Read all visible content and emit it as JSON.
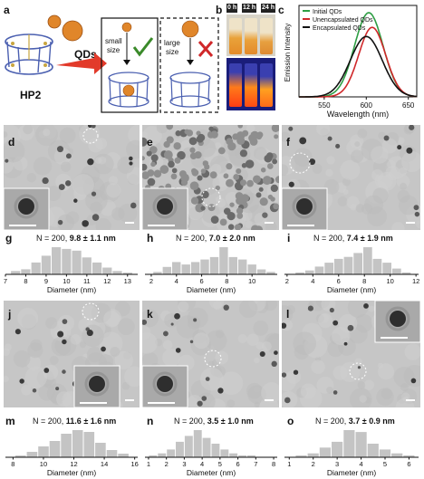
{
  "panel_labels": {
    "a": "a",
    "b": "b",
    "c": "c",
    "d": "d",
    "e": "e",
    "f": "f",
    "g": "g",
    "h": "h",
    "i": "i",
    "j": "j",
    "k": "k",
    "l": "l",
    "m": "m",
    "n": "n",
    "o": "o"
  },
  "schematic": {
    "host_label": "HP2",
    "qd_label": "QDs",
    "small_label_1": "small",
    "small_label_2": "size",
    "large_label_1": "large",
    "large_label_2": "size",
    "check_color": "#3a8a2a",
    "cross_color": "#d0282a",
    "arrow_color": "#e23a2a",
    "qd_color": "#e0862a"
  },
  "vials": {
    "times": [
      "0 h",
      "12 h",
      "24 h"
    ]
  },
  "emission_chart": {
    "type": "line",
    "xlabel": "Wavelength (nm)",
    "ylabel": "Emission Intensity",
    "xlim": [
      520,
      660
    ],
    "xticks": [
      "550",
      "600",
      "650"
    ],
    "series": [
      {
        "name": "Initial QDs",
        "color": "#2e9e44",
        "peak": 603,
        "height": 0.92,
        "width": 17
      },
      {
        "name": "Unencapsulated QDs",
        "color": "#d0282a",
        "peak": 607,
        "height": 0.76,
        "width": 16
      },
      {
        "name": "Encapsulated QDs",
        "color": "#111111",
        "peak": 600,
        "height": 0.66,
        "width": 19
      }
    ]
  },
  "chart_data": [
    {
      "type": "bar",
      "panel": "g",
      "title": "N = 200,",
      "stat": "9.8 ± 1.1 nm",
      "xlabel": "Diameter (nm)",
      "xlim": [
        7,
        13.5
      ],
      "xticks": [
        "7",
        "8",
        "9",
        "10",
        "11",
        "12",
        "13"
      ],
      "x": [
        7.5,
        8.0,
        8.5,
        9.0,
        9.5,
        10.0,
        10.5,
        11.0,
        11.5,
        12.0,
        12.5,
        13.0
      ],
      "values": [
        2,
        3,
        7,
        11,
        16,
        15,
        14,
        10,
        7,
        4,
        2,
        1
      ]
    },
    {
      "type": "bar",
      "panel": "h",
      "title": "N = 200,",
      "stat": "7.0 ± 2.0 nm",
      "xlabel": "Diameter (nm)",
      "xlim": [
        1.5,
        12
      ],
      "xticks": [
        "2",
        "4",
        "6",
        "8",
        "10"
      ],
      "x": [
        2.5,
        3.25,
        4.0,
        4.75,
        5.5,
        6.25,
        7.0,
        7.75,
        8.5,
        9.25,
        10.0,
        10.75,
        11.5
      ],
      "values": [
        1,
        3,
        5,
        4,
        5,
        6,
        7,
        11,
        7,
        6,
        4,
        2,
        1
      ]
    },
    {
      "type": "bar",
      "panel": "i",
      "title": "N = 200,",
      "stat": "7.4 ± 1.9 nm",
      "xlabel": "Diameter (nm)",
      "xlim": [
        1.8,
        12.2
      ],
      "xticks": [
        "2",
        "4",
        "6",
        "8",
        "10",
        "12"
      ],
      "x": [
        3.0,
        3.75,
        4.5,
        5.25,
        6.0,
        6.75,
        7.5,
        8.25,
        9.0,
        9.75,
        10.5,
        11.25
      ],
      "values": [
        1,
        2,
        4,
        6,
        8,
        9,
        11,
        14,
        8,
        6,
        3,
        1
      ]
    },
    {
      "type": "bar",
      "panel": "m",
      "title": "N = 200,",
      "stat": "11.6 ± 1.6 nm",
      "xlabel": "Diameter (nm)",
      "xlim": [
        7.5,
        16.2
      ],
      "xticks": [
        "8",
        "10",
        "12",
        "14",
        "16"
      ],
      "x": [
        8.5,
        9.25,
        10.0,
        10.75,
        11.5,
        12.25,
        13.0,
        13.75,
        14.5,
        15.25
      ],
      "values": [
        1,
        3,
        6,
        9,
        13,
        15,
        14,
        8,
        4,
        2
      ]
    },
    {
      "type": "bar",
      "panel": "n",
      "title": "N = 200,",
      "stat": "3.5 ± 1.0 nm",
      "xlabel": "Diameter (nm)",
      "xlim": [
        0.8,
        8.2
      ],
      "xticks": [
        "1",
        "2",
        "3",
        "4",
        "5",
        "6",
        "7",
        "8"
      ],
      "x": [
        1.25,
        1.75,
        2.25,
        2.75,
        3.25,
        3.75,
        4.25,
        4.75,
        5.25,
        5.75,
        6.25,
        6.75
      ],
      "values": [
        1,
        2,
        4,
        8,
        11,
        14,
        10,
        7,
        4,
        2,
        1,
        1
      ]
    },
    {
      "type": "bar",
      "panel": "o",
      "title": "N = 200,",
      "stat": "3.7 ± 0.9 nm",
      "xlabel": "Diameter (nm)",
      "xlim": [
        0.8,
        6.4
      ],
      "xticks": [
        "1",
        "2",
        "3",
        "4",
        "5",
        "6"
      ],
      "x": [
        1.5,
        2.0,
        2.5,
        3.0,
        3.5,
        4.0,
        4.5,
        5.0,
        5.5,
        6.0
      ],
      "values": [
        1,
        2,
        5,
        8,
        14,
        13,
        7,
        4,
        2,
        1
      ]
    }
  ]
}
